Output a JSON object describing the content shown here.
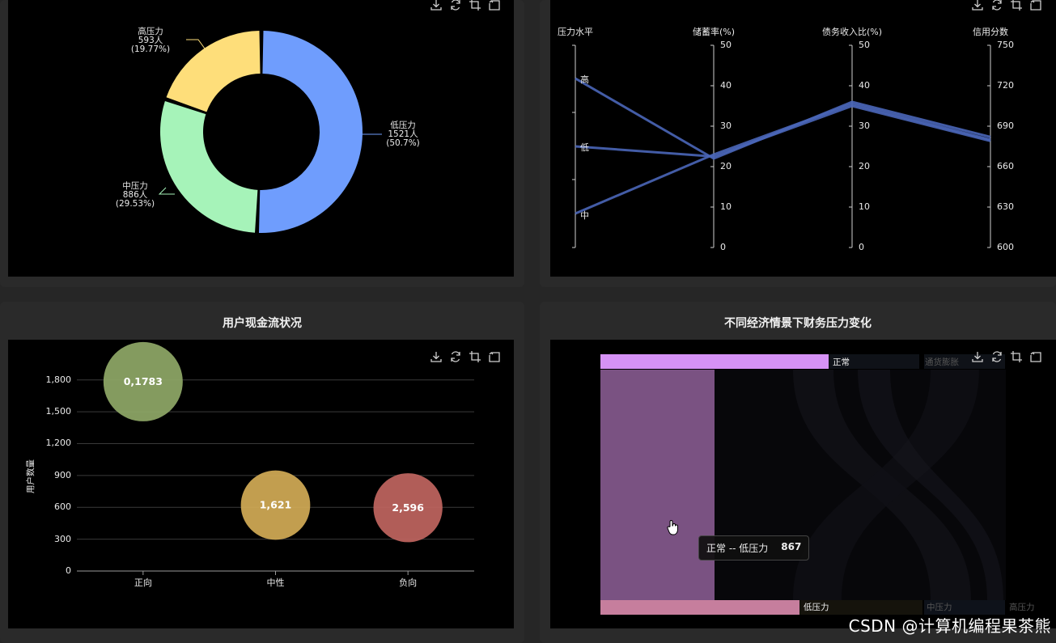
{
  "toolbox": {
    "icons": [
      "download-icon",
      "refresh-icon",
      "data-zoom-icon",
      "restore-icon"
    ]
  },
  "pressure_pie": {
    "slices": [
      {
        "name": "低压力",
        "count_label": "1521人",
        "pct_label": "(50.7%)",
        "value": 1521,
        "color": "#6f9dfd"
      },
      {
        "name": "中压力",
        "count_label": "886人",
        "pct_label": "(29.53%)",
        "value": 886,
        "color": "#a6f3b9"
      },
      {
        "name": "高压力",
        "count_label": "593人",
        "pct_label": "(19.77%)",
        "value": 593,
        "color": "#fede7a"
      }
    ]
  },
  "parallel": {
    "axes": [
      {
        "name": "压力水平",
        "type": "category",
        "categories": [
          "中",
          "低",
          "高"
        ]
      },
      {
        "name": "储蓄率(%)",
        "ticks": [
          "50",
          "40",
          "30",
          "20",
          "10",
          "0"
        ],
        "min": 0,
        "max": 50
      },
      {
        "name": "债务收入比(%)",
        "ticks": [
          "50",
          "40",
          "30",
          "20",
          "10",
          "0"
        ],
        "min": 0,
        "max": 50
      },
      {
        "name": "信用分数",
        "ticks": [
          "750",
          "720",
          "690",
          "660",
          "630",
          "600"
        ],
        "min": 600,
        "max": 750
      }
    ],
    "lines": [
      {
        "level": "高",
        "saving": 22,
        "debt": 36,
        "credit": 682
      },
      {
        "level": "低",
        "saving": 22.5,
        "debt": 35,
        "credit": 679
      },
      {
        "level": "中",
        "saving": 23,
        "debt": 35.5,
        "credit": 680
      }
    ],
    "color": "#4a66b8"
  },
  "cashflow": {
    "title": "用户现金流状况",
    "y_axis_label": "用户数量",
    "chart_data": {
      "type": "scatter",
      "categories": [
        "正向",
        "中性",
        "负向"
      ],
      "yticks": [
        "0",
        "300",
        "600",
        "900",
        "1,200",
        "1,500",
        "1,800"
      ],
      "ylim": [
        0,
        1950
      ],
      "points": [
        {
          "category": "正向",
          "value": 1783,
          "label": "0,1783",
          "color": "#8fa867"
        },
        {
          "category": "中性",
          "value": 621,
          "label": "1,621",
          "color": "#d3ab56"
        },
        {
          "category": "负向",
          "value": 596,
          "label": "2,596",
          "color": "#c0655f"
        }
      ]
    }
  },
  "sankey": {
    "title": "不同经济情景下财务压力变化",
    "top_labels": [
      "正常",
      "通货膨胀"
    ],
    "bottom_labels": [
      "低压力",
      "中压力",
      "高压力"
    ],
    "tooltip": {
      "name": "正常 -- 低压力",
      "value": "867"
    }
  },
  "watermark": "CSDN @计算机编程果茶熊"
}
